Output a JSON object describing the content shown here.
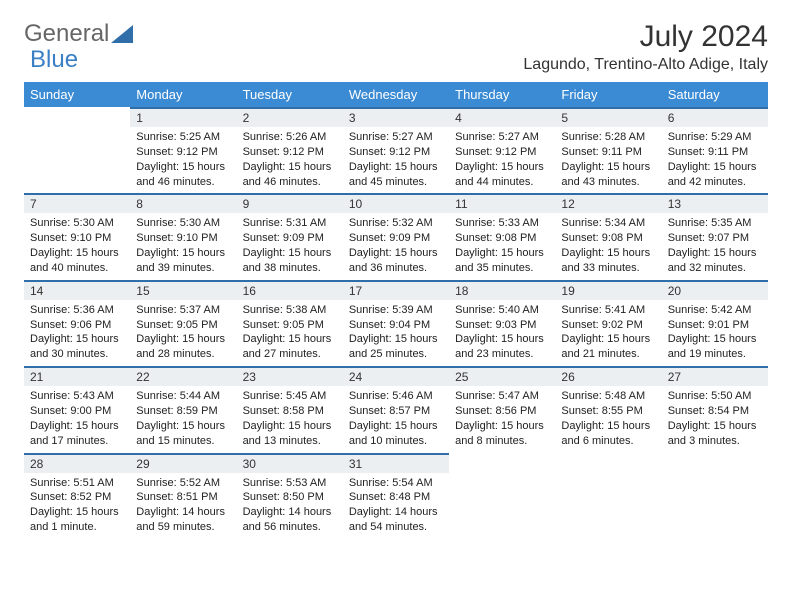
{
  "brand": {
    "text1": "General",
    "text2": "Blue",
    "text1_color": "#666666",
    "text2_color": "#3b7fc4"
  },
  "title": "July 2024",
  "location": "Lagundo, Trentino-Alto Adige, Italy",
  "header_bg": "#3b8bd4",
  "daynum_bg": "#eceff1",
  "daynum_border": "#2f6ea8",
  "weekdays": [
    "Sunday",
    "Monday",
    "Tuesday",
    "Wednesday",
    "Thursday",
    "Friday",
    "Saturday"
  ],
  "weeks": [
    [
      null,
      {
        "n": "1",
        "sr": "5:25 AM",
        "ss": "9:12 PM",
        "dl": "15 hours and 46 minutes."
      },
      {
        "n": "2",
        "sr": "5:26 AM",
        "ss": "9:12 PM",
        "dl": "15 hours and 46 minutes."
      },
      {
        "n": "3",
        "sr": "5:27 AM",
        "ss": "9:12 PM",
        "dl": "15 hours and 45 minutes."
      },
      {
        "n": "4",
        "sr": "5:27 AM",
        "ss": "9:12 PM",
        "dl": "15 hours and 44 minutes."
      },
      {
        "n": "5",
        "sr": "5:28 AM",
        "ss": "9:11 PM",
        "dl": "15 hours and 43 minutes."
      },
      {
        "n": "6",
        "sr": "5:29 AM",
        "ss": "9:11 PM",
        "dl": "15 hours and 42 minutes."
      }
    ],
    [
      {
        "n": "7",
        "sr": "5:30 AM",
        "ss": "9:10 PM",
        "dl": "15 hours and 40 minutes."
      },
      {
        "n": "8",
        "sr": "5:30 AM",
        "ss": "9:10 PM",
        "dl": "15 hours and 39 minutes."
      },
      {
        "n": "9",
        "sr": "5:31 AM",
        "ss": "9:09 PM",
        "dl": "15 hours and 38 minutes."
      },
      {
        "n": "10",
        "sr": "5:32 AM",
        "ss": "9:09 PM",
        "dl": "15 hours and 36 minutes."
      },
      {
        "n": "11",
        "sr": "5:33 AM",
        "ss": "9:08 PM",
        "dl": "15 hours and 35 minutes."
      },
      {
        "n": "12",
        "sr": "5:34 AM",
        "ss": "9:08 PM",
        "dl": "15 hours and 33 minutes."
      },
      {
        "n": "13",
        "sr": "5:35 AM",
        "ss": "9:07 PM",
        "dl": "15 hours and 32 minutes."
      }
    ],
    [
      {
        "n": "14",
        "sr": "5:36 AM",
        "ss": "9:06 PM",
        "dl": "15 hours and 30 minutes."
      },
      {
        "n": "15",
        "sr": "5:37 AM",
        "ss": "9:05 PM",
        "dl": "15 hours and 28 minutes."
      },
      {
        "n": "16",
        "sr": "5:38 AM",
        "ss": "9:05 PM",
        "dl": "15 hours and 27 minutes."
      },
      {
        "n": "17",
        "sr": "5:39 AM",
        "ss": "9:04 PM",
        "dl": "15 hours and 25 minutes."
      },
      {
        "n": "18",
        "sr": "5:40 AM",
        "ss": "9:03 PM",
        "dl": "15 hours and 23 minutes."
      },
      {
        "n": "19",
        "sr": "5:41 AM",
        "ss": "9:02 PM",
        "dl": "15 hours and 21 minutes."
      },
      {
        "n": "20",
        "sr": "5:42 AM",
        "ss": "9:01 PM",
        "dl": "15 hours and 19 minutes."
      }
    ],
    [
      {
        "n": "21",
        "sr": "5:43 AM",
        "ss": "9:00 PM",
        "dl": "15 hours and 17 minutes."
      },
      {
        "n": "22",
        "sr": "5:44 AM",
        "ss": "8:59 PM",
        "dl": "15 hours and 15 minutes."
      },
      {
        "n": "23",
        "sr": "5:45 AM",
        "ss": "8:58 PM",
        "dl": "15 hours and 13 minutes."
      },
      {
        "n": "24",
        "sr": "5:46 AM",
        "ss": "8:57 PM",
        "dl": "15 hours and 10 minutes."
      },
      {
        "n": "25",
        "sr": "5:47 AM",
        "ss": "8:56 PM",
        "dl": "15 hours and 8 minutes."
      },
      {
        "n": "26",
        "sr": "5:48 AM",
        "ss": "8:55 PM",
        "dl": "15 hours and 6 minutes."
      },
      {
        "n": "27",
        "sr": "5:50 AM",
        "ss": "8:54 PM",
        "dl": "15 hours and 3 minutes."
      }
    ],
    [
      {
        "n": "28",
        "sr": "5:51 AM",
        "ss": "8:52 PM",
        "dl": "15 hours and 1 minute."
      },
      {
        "n": "29",
        "sr": "5:52 AM",
        "ss": "8:51 PM",
        "dl": "14 hours and 59 minutes."
      },
      {
        "n": "30",
        "sr": "5:53 AM",
        "ss": "8:50 PM",
        "dl": "14 hours and 56 minutes."
      },
      {
        "n": "31",
        "sr": "5:54 AM",
        "ss": "8:48 PM",
        "dl": "14 hours and 54 minutes."
      },
      null,
      null,
      null
    ]
  ],
  "labels": {
    "sunrise": "Sunrise:",
    "sunset": "Sunset:",
    "daylight": "Daylight:"
  }
}
